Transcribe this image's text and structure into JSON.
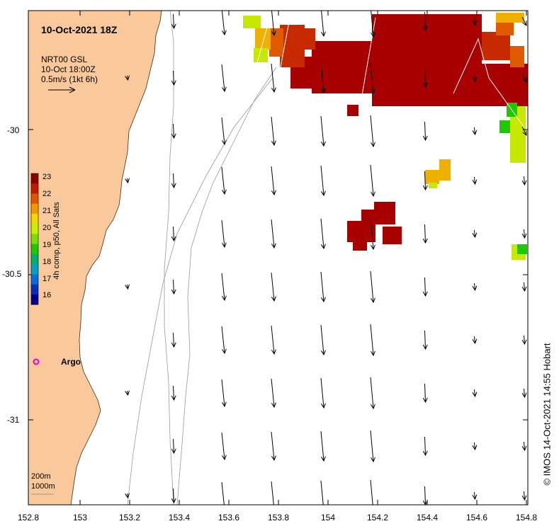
{
  "title": "10-Oct-2021 18Z",
  "product": "NRT00 GSL",
  "product_time": "10-Oct 18:00Z",
  "arrow_scale": "0.5m/s (1kt 6h)",
  "colorbar": {
    "title": "4h comp, p50, All Sats",
    "ticks": [
      "23",
      "22",
      "21",
      "20",
      "19",
      "18",
      "17",
      "16"
    ],
    "colors": [
      "#8b0000",
      "#c21a00",
      "#e05500",
      "#f09a00",
      "#f5d800",
      "#c8f000",
      "#7adc00",
      "#1ec800",
      "#00b070",
      "#00a0c8",
      "#0070e0",
      "#0030c0",
      "#000090"
    ]
  },
  "x_ticks": [
    "152.8",
    "153",
    "153.2",
    "153.4",
    "153.6",
    "153.8",
    "154",
    "154.2",
    "154.4",
    "154.6",
    "154.8"
  ],
  "y_ticks": [
    "-30",
    "-30.5",
    "-31"
  ],
  "legend": {
    "depth_200": "200m",
    "depth_1000": "1000m"
  },
  "argo_label": "Argo",
  "credit": "© IMOS 14-Oct-2021 14:55 Hobart",
  "style": {
    "land": "#f9c99b",
    "sst_hot": "#a80000",
    "arrow": "#000000"
  }
}
